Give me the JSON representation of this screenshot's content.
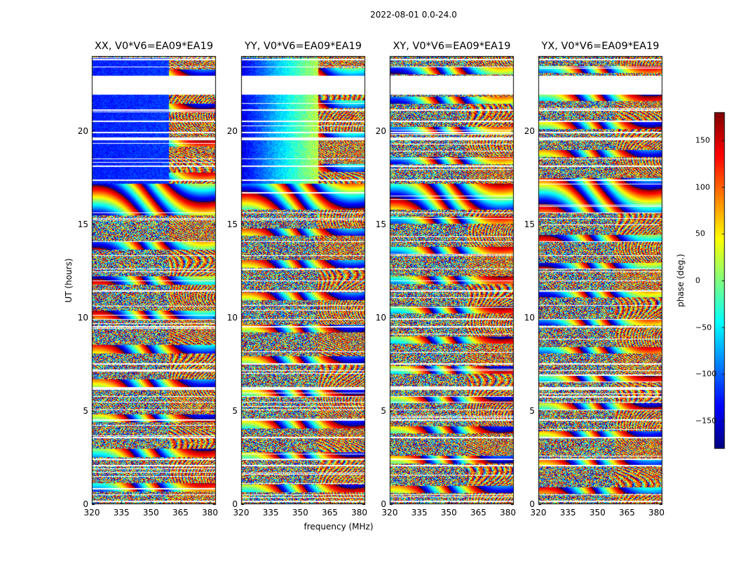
{
  "chart_data": {
    "type": "heatmap",
    "suptitle": "2022-08-01 0.0-24.0",
    "xlabel": "frequency (MHz)",
    "ylabel": "UT (hours)",
    "xlim": [
      320,
      383
    ],
    "ylim": [
      0,
      24
    ],
    "xticks": [
      "320",
      "335",
      "350",
      "365",
      "380"
    ],
    "yticks": [
      "0",
      "5",
      "10",
      "15",
      "20"
    ],
    "panels": [
      {
        "title": "XX, V0*V6=EA09*EA19",
        "pol": "XX"
      },
      {
        "title": "YY, V0*V6=EA09*EA19",
        "pol": "YY"
      },
      {
        "title": "XY, V0*V6=EA09*EA19",
        "pol": "XY"
      },
      {
        "title": "YX, V0*V6=EA09*EA19",
        "pol": "YX"
      }
    ],
    "colorbar": {
      "label": "phase (deg.)",
      "range": [
        -180,
        180
      ],
      "ticks": [
        "150",
        "100",
        "50",
        "0",
        "−50",
        "−100",
        "−150"
      ],
      "tick_values": [
        150,
        100,
        50,
        0,
        -50,
        -100,
        -150
      ],
      "colormap": "jet"
    },
    "flagged_ut_intervals": [
      [
        0.15,
        0.2
      ],
      [
        0.5,
        0.55
      ],
      [
        2.05,
        2.12
      ],
      [
        2.4,
        2.45
      ],
      [
        3.55,
        3.62
      ],
      [
        4.5,
        4.55
      ],
      [
        5.05,
        5.1
      ],
      [
        5.45,
        5.5
      ],
      [
        5.75,
        5.82
      ],
      [
        6.15,
        6.3
      ],
      [
        7.15,
        7.2
      ],
      [
        7.5,
        7.55
      ],
      [
        9.5,
        9.55
      ],
      [
        9.9,
        9.95
      ],
      [
        11.4,
        11.48
      ],
      [
        11.95,
        12.0
      ],
      [
        12.6,
        12.65
      ],
      [
        13.3,
        13.35
      ],
      [
        14.05,
        14.1
      ],
      [
        15.3,
        15.35
      ],
      [
        15.6,
        15.65
      ],
      [
        17.35,
        17.42
      ],
      [
        18.1,
        18.15
      ],
      [
        18.5,
        18.55
      ],
      [
        19.5,
        19.65
      ],
      [
        19.9,
        19.98
      ],
      [
        20.5,
        20.55
      ],
      [
        21.1,
        21.15
      ],
      [
        21.95,
        22.95
      ],
      [
        23.4,
        23.45
      ],
      [
        23.8,
        23.85
      ]
    ]
  }
}
